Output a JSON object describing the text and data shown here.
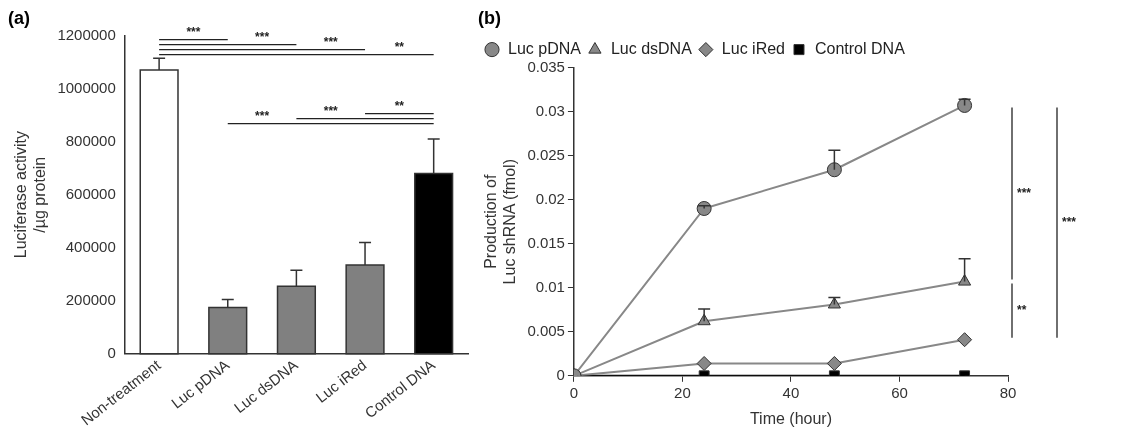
{
  "chart_data": [
    {
      "type": "bar",
      "title": "(a)",
      "ylabel": "Luciferase activity\n/µg protein",
      "categories": [
        "Non-treatment",
        "Luc pDNA",
        "Luc dsDNA",
        "Luc iRed",
        "Control DNA"
      ],
      "values": [
        1070000,
        175000,
        255000,
        335000,
        680000
      ],
      "colors": [
        "#ffffff",
        "#808080",
        "#808080",
        "#808080",
        "#000000"
      ],
      "errors": [
        [
          1070000,
          1115000
        ],
        [
          175000,
          205000
        ],
        [
          255000,
          315000
        ],
        [
          335000,
          420000
        ],
        [
          680000,
          810000
        ]
      ],
      "ylim": [
        0,
        1200000
      ],
      "yticks": [
        0,
        200000,
        400000,
        600000,
        800000,
        1000000,
        1200000
      ],
      "grid": false,
      "legend": false,
      "annotations": [
        "***",
        "***",
        "***",
        "**",
        "***",
        "***",
        "**"
      ]
    },
    {
      "type": "line",
      "title": "(b)",
      "xlabel": "Time (hour)",
      "ylabel": "Production of\nLuc shRNA (fmol)",
      "x": [
        0,
        24,
        48,
        72
      ],
      "series": [
        {
          "name": "Luc pDNA",
          "color": "#888888",
          "marker": "circle",
          "values": [
            0,
            0.019,
            0.0234,
            0.0307
          ],
          "errors": [
            null,
            [
              0.019,
              0.0193
            ],
            [
              0.0234,
              0.0256
            ],
            [
              0.0307,
              0.0314
            ]
          ]
        },
        {
          "name": "Luc dsDNA",
          "color": "#888888",
          "marker": "triangle",
          "values": [
            0,
            0.0062,
            0.0081,
            0.0107
          ],
          "errors": [
            null,
            [
              0.0062,
              0.0076
            ],
            [
              0.0081,
              0.0089
            ],
            [
              0.0107,
              0.0133
            ]
          ]
        },
        {
          "name": "Luc iRed",
          "color": "#888888",
          "marker": "diamond",
          "values": [
            0,
            0.0014,
            0.0014,
            0.0041
          ]
        },
        {
          "name": "Control DNA",
          "color": "#000000",
          "marker": "square",
          "values": [
            0,
            0,
            0,
            0
          ]
        }
      ],
      "xlim": [
        0,
        80
      ],
      "xticks": [
        0,
        20,
        40,
        60,
        80
      ],
      "ylim": [
        0,
        0.035
      ],
      "yticks": [
        0,
        0.005,
        0.01,
        0.015,
        0.02,
        0.025,
        0.03,
        0.035
      ],
      "grid": false,
      "legend": "top left",
      "annotations": [
        "***",
        "**",
        "***"
      ]
    }
  ]
}
